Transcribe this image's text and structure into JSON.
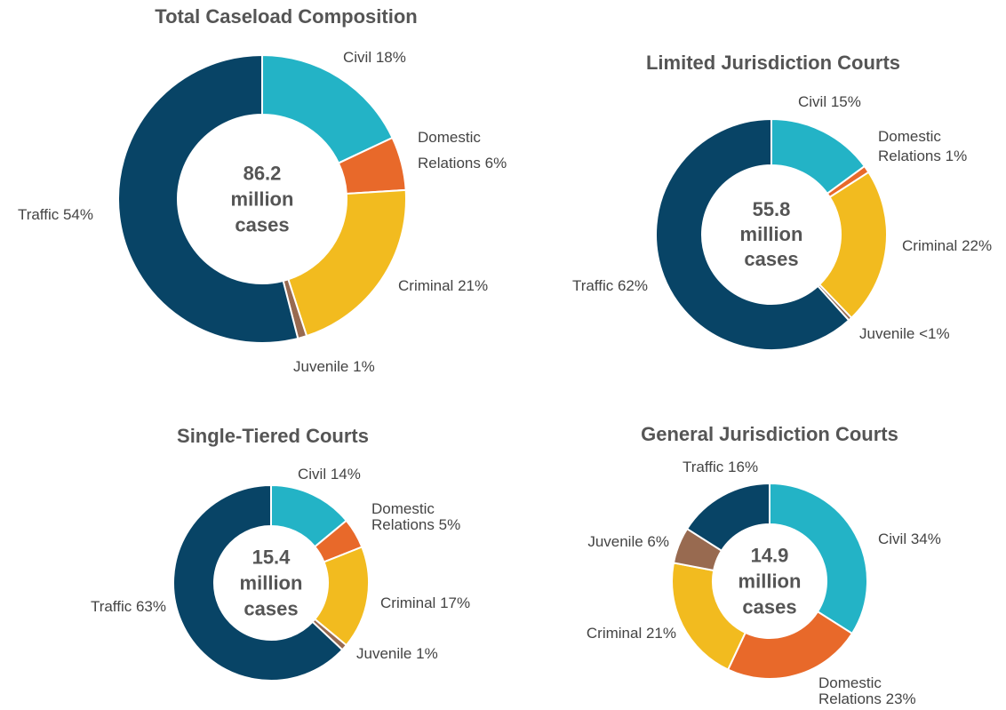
{
  "chart_data": [
    {
      "type": "pie",
      "title": "Total Caseload Composition",
      "center_text": "86.2 million cases",
      "categories": [
        "Civil",
        "Domestic Relations",
        "Criminal",
        "Juvenile",
        "Traffic"
      ],
      "values": [
        18,
        6,
        21,
        1,
        54
      ],
      "value_labels": [
        "18%",
        "6%",
        "21%",
        "1%",
        "54%"
      ],
      "colors": [
        "#23b3c6",
        "#e8692a",
        "#f2bb1f",
        "#986a50",
        "#084466"
      ]
    },
    {
      "type": "pie",
      "title": "Limited Jurisdiction Courts",
      "center_text": "55.8 million cases",
      "categories": [
        "Civil",
        "Domestic Relations",
        "Criminal",
        "Juvenile",
        "Traffic"
      ],
      "values": [
        15,
        1,
        22,
        0.5,
        62
      ],
      "value_labels": [
        "15%",
        "1%",
        "22%",
        "<1%",
        "62%"
      ],
      "colors": [
        "#23b3c6",
        "#e8692a",
        "#f2bb1f",
        "#986a50",
        "#084466"
      ]
    },
    {
      "type": "pie",
      "title": "Single-Tiered Courts",
      "center_text": "15.4 million cases",
      "categories": [
        "Civil",
        "Domestic Relations",
        "Criminal",
        "Juvenile",
        "Traffic"
      ],
      "values": [
        14,
        5,
        17,
        1,
        63
      ],
      "value_labels": [
        "14%",
        "5%",
        "17%",
        "1%",
        "63%"
      ],
      "colors": [
        "#23b3c6",
        "#e8692a",
        "#f2bb1f",
        "#986a50",
        "#084466"
      ]
    },
    {
      "type": "pie",
      "title": "General Jurisdiction Courts",
      "center_text": "14.9 million cases",
      "categories": [
        "Civil",
        "Domestic Relations",
        "Criminal",
        "Juvenile",
        "Traffic"
      ],
      "values": [
        34,
        23,
        21,
        6,
        16
      ],
      "value_labels": [
        "34%",
        "23%",
        "21%",
        "6%",
        "16%"
      ],
      "colors": [
        "#23b3c6",
        "#e8692a",
        "#f2bb1f",
        "#986a50",
        "#084466"
      ]
    }
  ]
}
